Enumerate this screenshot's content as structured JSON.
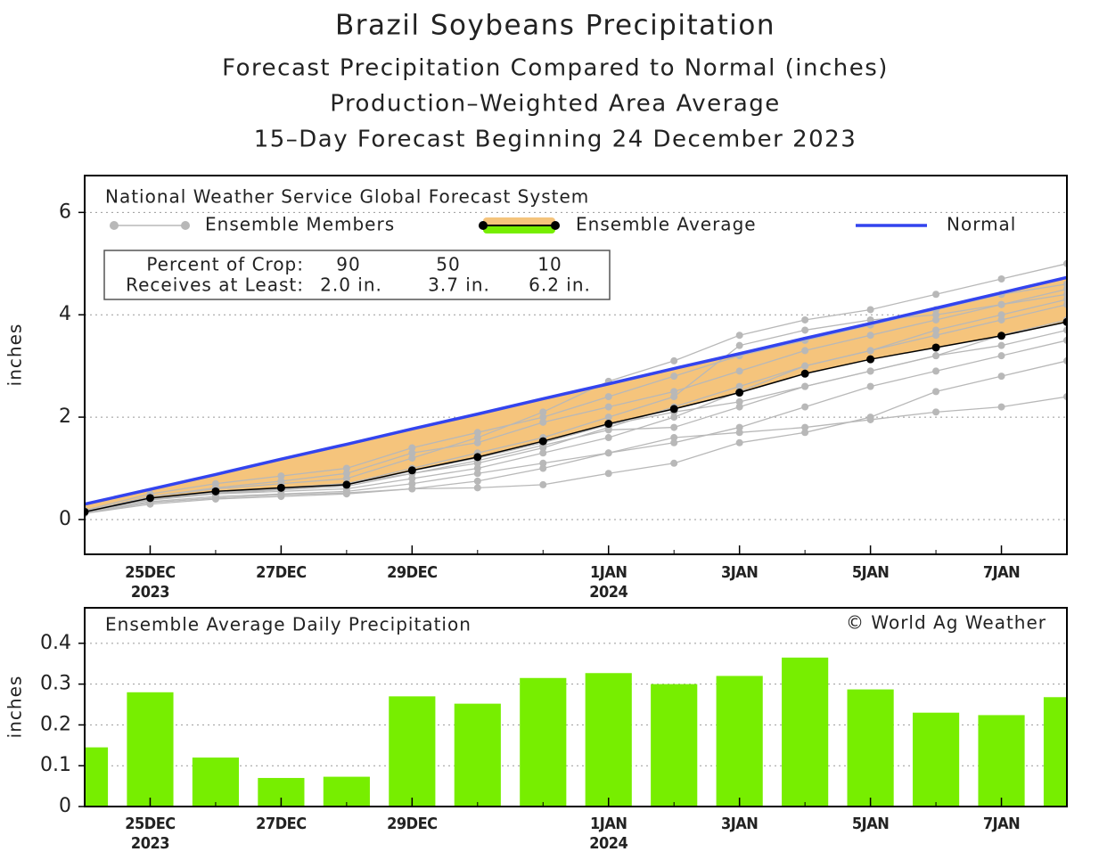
{
  "chart_data": [
    {
      "type": "line",
      "title": "Brazil Soybeans Precipitation",
      "subtitle": [
        "Forecast Precipitation Compared to Normal (inches)",
        "Production–Weighted Area Average",
        "15–Day Forecast Beginning 24 December 2023"
      ],
      "annotation": "National Weather Service Global Forecast System",
      "crop_table": {
        "header": "Percent of Crop:",
        "row_label": "Receives at Least:",
        "percents": [
          90,
          50,
          10
        ],
        "amounts": [
          "2.0 in.",
          "3.7 in.",
          "6.2 in."
        ]
      },
      "y_label": "inches",
      "x": [
        "2023-12-24",
        "2023-12-25",
        "2023-12-26",
        "2023-12-27",
        "2023-12-28",
        "2023-12-29",
        "2023-12-30",
        "2023-12-31",
        "2024-01-01",
        "2024-01-02",
        "2024-01-03",
        "2024-01-04",
        "2024-01-05",
        "2024-01-06",
        "2024-01-07",
        "2024-01-08"
      ],
      "xlim": [
        "2023-12-24",
        "2024-01-08"
      ],
      "xticks": [
        {
          "value": "2023-12-25",
          "label": "25DEC"
        },
        {
          "value": "2023-12-27",
          "label": "27DEC"
        },
        {
          "value": "2023-12-29",
          "label": "29DEC"
        },
        {
          "value": "2024-01-01",
          "label": "1JAN"
        },
        {
          "value": "2024-01-03",
          "label": "3JAN"
        },
        {
          "value": "2024-01-05",
          "label": "5JAN"
        },
        {
          "value": "2024-01-07",
          "label": "7JAN"
        }
      ],
      "xtick_years": [
        {
          "value": "2023-12-25",
          "label": "2023"
        },
        {
          "value": "2024-01-01",
          "label": "2024"
        }
      ],
      "ylim": [
        -0.68,
        6.72
      ],
      "yticks": [
        0,
        2,
        4,
        6
      ],
      "grid": true,
      "series": [
        {
          "name": "Ensemble Members",
          "color": "#b8b8b8",
          "members": [
            [
              0.15,
              0.45,
              0.6,
              0.7,
              0.8,
              1.2,
              1.6,
              2.1,
              2.7,
              3.1,
              3.6,
              3.9,
              4.1,
              4.4,
              4.7,
              5.0
            ],
            [
              0.15,
              0.4,
              0.5,
              0.55,
              0.6,
              0.8,
              1.0,
              1.3,
              1.6,
              2.0,
              2.5,
              3.0,
              3.3,
              3.6,
              3.9,
              4.2
            ],
            [
              0.12,
              0.35,
              0.45,
              0.5,
              0.55,
              0.7,
              0.9,
              1.1,
              1.3,
              1.5,
              1.8,
              2.2,
              2.6,
              2.9,
              3.2,
              3.5
            ],
            [
              0.18,
              0.5,
              0.7,
              0.85,
              1.0,
              1.4,
              1.7,
              2.0,
              2.4,
              2.8,
              3.2,
              3.5,
              3.8,
              4.1,
              4.4,
              4.6
            ],
            [
              0.12,
              0.3,
              0.4,
              0.45,
              0.5,
              0.6,
              0.75,
              1.0,
              1.3,
              1.6,
              1.7,
              1.8,
              1.95,
              2.1,
              2.2,
              2.4
            ],
            [
              0.14,
              0.38,
              0.5,
              0.58,
              0.65,
              0.9,
              1.1,
              1.4,
              1.8,
              2.2,
              2.6,
              3.0,
              3.3,
              3.7,
              4.0,
              4.3
            ],
            [
              0.13,
              0.33,
              0.42,
              0.48,
              0.52,
              0.6,
              0.62,
              0.68,
              0.9,
              1.1,
              1.5,
              1.7,
              2.0,
              2.5,
              2.8,
              3.1
            ],
            [
              0.16,
              0.45,
              0.62,
              0.75,
              0.9,
              1.3,
              1.5,
              1.9,
              2.2,
              2.5,
              2.9,
              3.3,
              3.6,
              3.9,
              4.2,
              4.5
            ],
            [
              0.14,
              0.4,
              0.55,
              0.62,
              0.7,
              1.0,
              1.3,
              1.6,
              2.0,
              2.4,
              3.4,
              3.7,
              3.9,
              4.0,
              4.2,
              4.4
            ],
            [
              0.15,
              0.42,
              0.52,
              0.6,
              0.68,
              0.95,
              1.2,
              1.5,
              1.85,
              2.1,
              2.3,
              2.6,
              2.9,
              3.2,
              3.4,
              3.7
            ],
            [
              0.14,
              0.4,
              0.52,
              0.6,
              0.7,
              0.9,
              1.15,
              1.45,
              1.75,
              1.8,
              2.2,
              2.6,
              2.9,
              3.2,
              3.6,
              3.9
            ]
          ]
        },
        {
          "name": "Ensemble Average",
          "color": "#000000",
          "fill": "#f5c47c",
          "values": [
            0.15,
            0.42,
            0.55,
            0.62,
            0.68,
            0.96,
            1.22,
            1.53,
            1.87,
            2.16,
            2.48,
            2.85,
            3.13,
            3.36,
            3.59,
            3.86
          ]
        },
        {
          "name": "Normal",
          "color": "#3344ee",
          "values": [
            0.3,
            0.59,
            0.88,
            1.18,
            1.47,
            1.77,
            2.06,
            2.36,
            2.65,
            2.95,
            3.24,
            3.54,
            3.83,
            4.13,
            4.43,
            4.73
          ]
        }
      ]
    },
    {
      "type": "bar",
      "title": "Ensemble Average Daily Precipitation",
      "annotation": "© World Ag Weather",
      "y_label": "inches",
      "x": [
        "2023-12-24",
        "2023-12-25",
        "2023-12-26",
        "2023-12-27",
        "2023-12-28",
        "2023-12-29",
        "2023-12-30",
        "2023-12-31",
        "2024-01-01",
        "2024-01-02",
        "2024-01-03",
        "2024-01-04",
        "2024-01-05",
        "2024-01-06",
        "2024-01-07",
        "2024-01-08"
      ],
      "values": [
        0.145,
        0.28,
        0.12,
        0.07,
        0.073,
        0.27,
        0.252,
        0.315,
        0.327,
        0.3,
        0.32,
        0.365,
        0.287,
        0.23,
        0.224,
        0.268
      ],
      "color": "#77ee00",
      "xlim": [
        "2023-12-24",
        "2024-01-08"
      ],
      "xticks": [
        {
          "value": "2023-12-25",
          "label": "25DEC"
        },
        {
          "value": "2023-12-27",
          "label": "27DEC"
        },
        {
          "value": "2023-12-29",
          "label": "29DEC"
        },
        {
          "value": "2024-01-01",
          "label": "1JAN"
        },
        {
          "value": "2024-01-03",
          "label": "3JAN"
        },
        {
          "value": "2024-01-05",
          "label": "5JAN"
        },
        {
          "value": "2024-01-07",
          "label": "7JAN"
        }
      ],
      "xtick_years": [
        {
          "value": "2023-12-25",
          "label": "2023"
        },
        {
          "value": "2024-01-01",
          "label": "2024"
        }
      ],
      "ylim": [
        0,
        0.487
      ],
      "yticks": [
        0,
        0.1,
        0.2,
        0.3,
        0.4
      ],
      "grid": true
    }
  ]
}
